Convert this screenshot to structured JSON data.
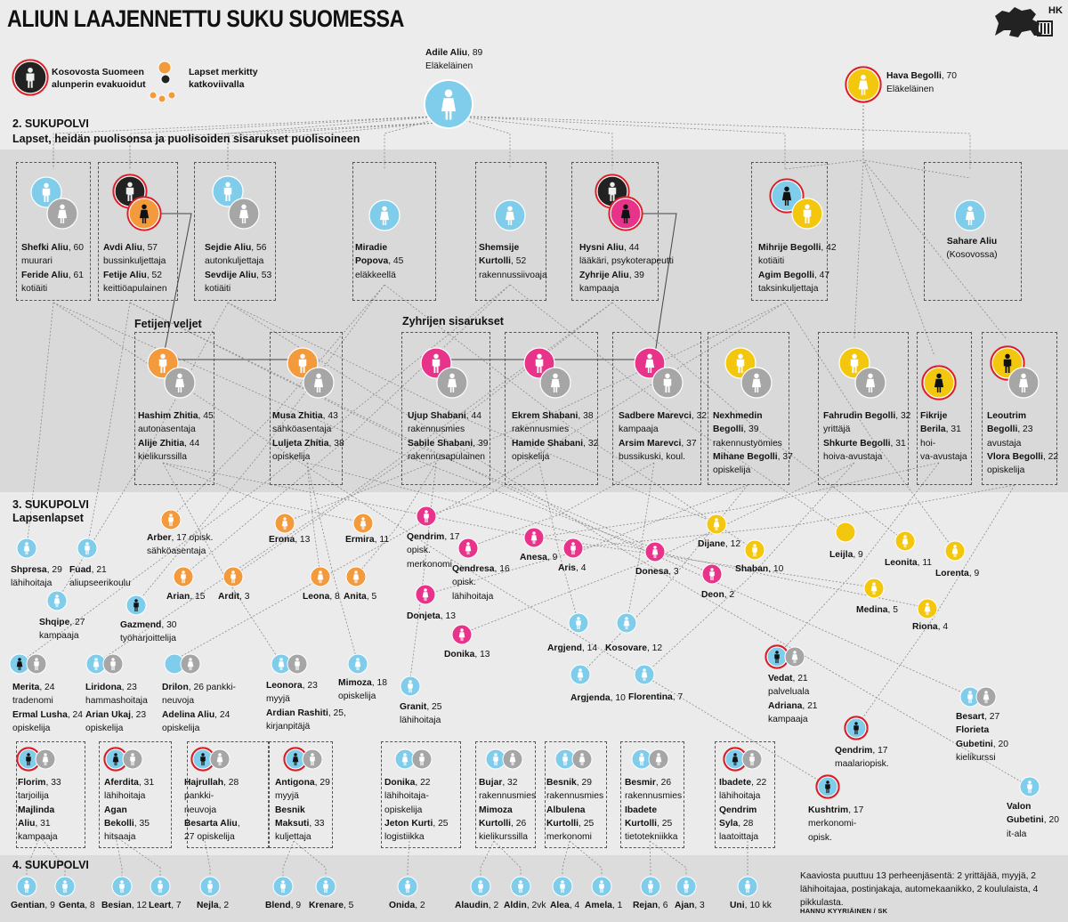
{
  "title": "ALIUN LAAJENNETTU SUKU SUOMESSA",
  "logo_text": "HK",
  "legend": {
    "evacuated": "Kosovosta Suomeen alunperin evakuoidut",
    "children_dotted": "Lapset merkitty katkoviivalla"
  },
  "colors": {
    "blue": "#7fcdea",
    "orange": "#f39a3c",
    "pink": "#e8338a",
    "yellow": "#f4c70f",
    "grey": "#a6a6a6",
    "black": "#222222",
    "red_ring": "#d9202a"
  },
  "sections": {
    "gen2_title": "2. SUKUPOLVI",
    "gen2_sub": "Lapset, heidän puolisonsa ja puolisoiden sisarukset puolisoineen",
    "gen3_title": "3. SUKUPOLVI",
    "gen3_sub": "Lapsenlapset",
    "gen4_title": "4. SUKUPOLVI",
    "fetijen": "Fetijen veljet",
    "zyhrijen": "Zyhrijen sisarukset"
  },
  "note": "Kaaviosta puuttuu 13 perheenjäsentä:  2 yrittäjää, myyjä, 2 lähihoitajaa, postinjakaja, automekaanikko, 2 koululaista, 4 pikkulasta.",
  "credit": "HANNU KYYRIÄINEN / SK",
  "people": [
    {
      "id": "adile",
      "lines": [
        [
          "Adile Aliu",
          ", 89"
        ],
        [
          "",
          "Eläkeläinen"
        ]
      ]
    },
    {
      "id": "hava",
      "lines": [
        [
          "Hava Begolli",
          ", 70"
        ],
        [
          "",
          "Eläkeläinen"
        ]
      ]
    },
    {
      "id": "shefki",
      "lines": [
        [
          "Shefki Aliu",
          ", 60"
        ],
        [
          "",
          "muurari"
        ],
        [
          "Feride Aliu",
          ", 61"
        ],
        [
          "",
          "kotiäiti"
        ]
      ]
    },
    {
      "id": "avdi",
      "lines": [
        [
          "Avdi Aliu",
          ", 57"
        ],
        [
          "",
          "bussinkuljettaja"
        ],
        [
          "Fetije Aliu",
          ", 52"
        ],
        [
          "",
          "keittiöapulainen"
        ]
      ]
    },
    {
      "id": "sejdie",
      "lines": [
        [
          "Sejdie Aliu",
          ", 56"
        ],
        [
          "",
          "autonkuljettaja"
        ],
        [
          "Sevdije Aliu",
          ", 53"
        ],
        [
          "",
          "kotiäiti"
        ]
      ]
    },
    {
      "id": "miradie",
      "lines": [
        [
          "Miradie",
          ""
        ],
        [
          "Popova",
          ", 45"
        ],
        [
          "",
          "eläkkeellä"
        ]
      ]
    },
    {
      "id": "shemsije",
      "lines": [
        [
          "Shemsije",
          ""
        ],
        [
          "Kurtolli",
          ",  52"
        ],
        [
          "",
          "rakennussiivoaja"
        ]
      ]
    },
    {
      "id": "hysni",
      "lines": [
        [
          "Hysni Aliu",
          ", 44"
        ],
        [
          "",
          "lääkäri, psykoterapeutti"
        ],
        [
          "Zyhrije Aliu",
          ", 39"
        ],
        [
          "",
          "kampaaja"
        ]
      ]
    },
    {
      "id": "mihrije",
      "lines": [
        [
          "Mihrije Begolli",
          ", 42"
        ],
        [
          "",
          "kotiäiti"
        ],
        [
          "Agim Begolli",
          ", 47"
        ],
        [
          "",
          "taksinkuljettaja"
        ]
      ]
    },
    {
      "id": "sahare",
      "lines": [
        [
          "Sahare Aliu",
          ""
        ],
        [
          "",
          "(Kosovossa)"
        ]
      ]
    },
    {
      "id": "hashim",
      "lines": [
        [
          "Hashim Zhitia",
          ", 45"
        ],
        [
          "",
          "autonasentaja"
        ],
        [
          "Alije Zhitia",
          ", 44"
        ],
        [
          "",
          "kielikurssilla"
        ]
      ]
    },
    {
      "id": "musa",
      "lines": [
        [
          "Musa Zhitia",
          ", 43"
        ],
        [
          "",
          "sähköasentaja"
        ],
        [
          "Luljeta Zhitia",
          ", 38"
        ],
        [
          "",
          "opiskelija"
        ]
      ]
    },
    {
      "id": "ujup",
      "lines": [
        [
          "Ujup Shabani",
          ", 44"
        ],
        [
          "",
          "rakennusmies"
        ],
        [
          "Sabile Shabani",
          ", 39"
        ],
        [
          "",
          "rakennusapulainen"
        ]
      ]
    },
    {
      "id": "ekrem",
      "lines": [
        [
          "Ekrem Shabani",
          ", 38"
        ],
        [
          "",
          "rakennusmies"
        ],
        [
          "Hamide Shabani",
          ", 32"
        ],
        [
          "",
          "opiskelija"
        ]
      ]
    },
    {
      "id": "sadbere",
      "lines": [
        [
          "Sadbere Marevci",
          ", 32"
        ],
        [
          "",
          "kampaaja"
        ],
        [
          "Arsim Marevci",
          ", 37"
        ],
        [
          "",
          "bussikuski, koul."
        ]
      ]
    },
    {
      "id": "nexhmedin",
      "lines": [
        [
          "Nexhmedin",
          ""
        ],
        [
          "Begolli",
          ", 39"
        ],
        [
          "",
          "rakennustyömies"
        ],
        [
          "Mihane Begolli",
          ", 37"
        ],
        [
          "",
          "opiskelija"
        ]
      ]
    },
    {
      "id": "fahrudin",
      "lines": [
        [
          "Fahrudin Begolli",
          ", 32"
        ],
        [
          "",
          "yrittäjä"
        ],
        [
          "Shkurte Begolli",
          ", 31"
        ],
        [
          "",
          "hoiva-avustaja"
        ]
      ]
    },
    {
      "id": "fikrije",
      "lines": [
        [
          "Fikrije",
          ""
        ],
        [
          "Berila",
          ", 31"
        ],
        [
          "",
          "hoi-"
        ],
        [
          "",
          "va-avustaja"
        ]
      ]
    },
    {
      "id": "leoutrim",
      "lines": [
        [
          "Leoutrim",
          ""
        ],
        [
          "Begolli",
          ", 23"
        ],
        [
          "",
          "avustaja"
        ],
        [
          "Vlora Begolli",
          ", 22"
        ],
        [
          "",
          "opiskelija"
        ]
      ]
    },
    {
      "id": "arber",
      "lines": [
        [
          "Arber",
          ", 17 opisk."
        ],
        [
          "",
          "sähköasentaja"
        ]
      ]
    },
    {
      "id": "arian",
      "lines": [
        [
          "Arian",
          ", 15"
        ]
      ]
    },
    {
      "id": "ardit",
      "lines": [
        [
          "Ardit",
          ", 3"
        ]
      ]
    },
    {
      "id": "erona",
      "lines": [
        [
          "Erona",
          ", 13"
        ]
      ]
    },
    {
      "id": "ermira",
      "lines": [
        [
          "Ermira",
          ", 11"
        ]
      ]
    },
    {
      "id": "leona",
      "lines": [
        [
          "Leona",
          ", 8"
        ]
      ]
    },
    {
      "id": "anita",
      "lines": [
        [
          "Anita",
          ", 5"
        ]
      ]
    },
    {
      "id": "qendrim17a",
      "lines": [
        [
          "Qendrim",
          ", 17"
        ],
        [
          "",
          "opisk."
        ],
        [
          "",
          "merkonomi"
        ]
      ]
    },
    {
      "id": "qendresa",
      "lines": [
        [
          "Qendresa",
          ", 16"
        ],
        [
          "",
          "opisk."
        ],
        [
          "",
          "lähihoitaja"
        ]
      ]
    },
    {
      "id": "donjeta",
      "lines": [
        [
          "Donjeta",
          ", 13"
        ]
      ]
    },
    {
      "id": "donika13",
      "lines": [
        [
          "Donika",
          ", 13"
        ]
      ]
    },
    {
      "id": "anesa",
      "lines": [
        [
          "Anesa",
          ", 9"
        ]
      ]
    },
    {
      "id": "aris",
      "lines": [
        [
          "Aris",
          ", 4"
        ]
      ]
    },
    {
      "id": "donesa",
      "lines": [
        [
          "Donesa",
          ", 3"
        ]
      ]
    },
    {
      "id": "deon",
      "lines": [
        [
          "Deon",
          ", 2"
        ]
      ]
    },
    {
      "id": "dijane",
      "lines": [
        [
          "Dijane",
          ", 12"
        ]
      ]
    },
    {
      "id": "shaban",
      "lines": [
        [
          "Shaban",
          ", 10"
        ]
      ]
    },
    {
      "id": "leijla",
      "lines": [
        [
          "Leijla",
          ", 9"
        ]
      ]
    },
    {
      "id": "leonita",
      "lines": [
        [
          "Leonita",
          ", 11"
        ]
      ]
    },
    {
      "id": "lorenta",
      "lines": [
        [
          "Lorenta",
          ", 9"
        ]
      ]
    },
    {
      "id": "medina",
      "lines": [
        [
          "Medina",
          ", 5"
        ]
      ]
    },
    {
      "id": "riona",
      "lines": [
        [
          "Riona",
          ", 4"
        ]
      ]
    },
    {
      "id": "shpresa",
      "lines": [
        [
          "Shpresa",
          ", 29"
        ],
        [
          "",
          "lähihoitaja"
        ]
      ]
    },
    {
      "id": "fuad",
      "lines": [
        [
          "Fuad",
          ", 21"
        ],
        [
          "",
          "aliupseerikoulu"
        ]
      ]
    },
    {
      "id": "shqipe",
      "lines": [
        [
          "Shqipe",
          ", 27"
        ],
        [
          "",
          "kampaaja"
        ]
      ]
    },
    {
      "id": "gazmend",
      "lines": [
        [
          "Gazmend",
          ", 30"
        ],
        [
          "",
          "työharjoittelija"
        ]
      ]
    },
    {
      "id": "merita",
      "lines": [
        [
          "Merita",
          ", 24"
        ],
        [
          "",
          "tradenomi"
        ],
        [
          "Ermal Lusha",
          ", 24"
        ],
        [
          "",
          "opiskelija"
        ]
      ]
    },
    {
      "id": "liridona",
      "lines": [
        [
          "Liridona",
          ", 23"
        ],
        [
          "",
          "hammashoitaja"
        ],
        [
          "Arian Ukaj",
          ", 23"
        ],
        [
          "",
          "opiskelija"
        ]
      ]
    },
    {
      "id": "drilon",
      "lines": [
        [
          "Drilon",
          ", 26 pankki-"
        ],
        [
          "",
          "neuvoja"
        ],
        [
          "Adelina Aliu",
          ", 24"
        ],
        [
          "",
          "opiskelija"
        ]
      ]
    },
    {
      "id": "leonora",
      "lines": [
        [
          "Leonora",
          ", 23"
        ],
        [
          "",
          "myyjä"
        ],
        [
          "Ardian Rashiti",
          ", 25,"
        ],
        [
          "",
          "kirjanpitäjä"
        ]
      ]
    },
    {
      "id": "mimoza18",
      "lines": [
        [
          "Mimoza",
          ", 18"
        ],
        [
          "",
          "opiskelija"
        ]
      ]
    },
    {
      "id": "granit",
      "lines": [
        [
          "Granit",
          ", 25"
        ],
        [
          "",
          "lähihoitaja"
        ]
      ]
    },
    {
      "id": "argjend14",
      "lines": [
        [
          "Argjend",
          ", 14"
        ]
      ]
    },
    {
      "id": "kosovare",
      "lines": [
        [
          "Kosovare",
          ", 12"
        ]
      ]
    },
    {
      "id": "argjenda",
      "lines": [
        [
          "Argjenda",
          ", 10"
        ]
      ]
    },
    {
      "id": "florentina",
      "lines": [
        [
          "Florentina",
          ", 7"
        ]
      ]
    },
    {
      "id": "vedat",
      "lines": [
        [
          "Vedat",
          ", 21"
        ],
        [
          "",
          "palveluala"
        ],
        [
          "Adriana",
          ", 21"
        ],
        [
          "",
          "kampaaja"
        ]
      ]
    },
    {
      "id": "qendrim17b",
      "lines": [
        [
          "Qendrim",
          ", 17"
        ],
        [
          "",
          "maalariopisk."
        ]
      ]
    },
    {
      "id": "kushtrim",
      "lines": [
        [
          "Kushtrim",
          ", 17"
        ],
        [
          "",
          "merkonomi-"
        ],
        [
          "",
          "opisk."
        ]
      ]
    },
    {
      "id": "besart",
      "lines": [
        [
          "Besart",
          ", 27"
        ],
        [
          "Florieta",
          ""
        ],
        [
          "Gubetini",
          ", 20"
        ],
        [
          "",
          "kielikurssi"
        ]
      ]
    },
    {
      "id": "valon",
      "lines": [
        [
          "Valon",
          ""
        ],
        [
          "Gubetini",
          ", 20"
        ],
        [
          "",
          "it-ala"
        ]
      ]
    },
    {
      "id": "florim",
      "lines": [
        [
          "Florim",
          ", 33"
        ],
        [
          "",
          "tarjoilija"
        ],
        [
          "Majlinda",
          ""
        ],
        [
          "Aliu",
          ", 31"
        ],
        [
          "",
          "kampaaja"
        ]
      ]
    },
    {
      "id": "aferdita",
      "lines": [
        [
          "Aferdita",
          ", 31"
        ],
        [
          "",
          "lähihoitaja"
        ],
        [
          "Agan",
          ""
        ],
        [
          "Bekolli",
          ", 35"
        ],
        [
          "",
          "hitsaaja"
        ]
      ]
    },
    {
      "id": "hajrullah",
      "lines": [
        [
          "Hajrullah",
          ", 28"
        ],
        [
          "",
          "pankki-"
        ],
        [
          "",
          "neuvoja"
        ],
        [
          "Besarta Aliu",
          ","
        ],
        [
          "",
          "27 opiskelija"
        ]
      ]
    },
    {
      "id": "antigona",
      "lines": [
        [
          "Antigona",
          ", 29"
        ],
        [
          "",
          "myyjä"
        ],
        [
          "Besnik",
          ""
        ],
        [
          "Maksuti",
          ", 33"
        ],
        [
          "",
          "kuljettaja"
        ]
      ]
    },
    {
      "id": "donika22",
      "lines": [
        [
          "Donika",
          ", 22"
        ],
        [
          "",
          "lähihoitaja-"
        ],
        [
          "",
          "opiskelija"
        ],
        [
          "Jeton Kurti",
          ", 25"
        ],
        [
          "",
          "logistiikka"
        ]
      ]
    },
    {
      "id": "bujar",
      "lines": [
        [
          "Bujar",
          ", 32"
        ],
        [
          "",
          "rakennusmies"
        ],
        [
          "Mimoza",
          ""
        ],
        [
          "Kurtolli",
          ", 26"
        ],
        [
          "",
          "kielikurssilla"
        ]
      ]
    },
    {
      "id": "besnik",
      "lines": [
        [
          "Besnik",
          ", 29"
        ],
        [
          "",
          "rakennusmies"
        ],
        [
          "Albulena",
          ""
        ],
        [
          "Kurtolli",
          ", 25"
        ],
        [
          "",
          "merkonomi"
        ]
      ]
    },
    {
      "id": "besmir",
      "lines": [
        [
          "Besmir",
          ", 26"
        ],
        [
          "",
          "rakennusmies"
        ],
        [
          "Ibadete",
          ""
        ],
        [
          "Kurtolli",
          ", 25"
        ],
        [
          "",
          "tietotekniikka"
        ]
      ]
    },
    {
      "id": "ibadete",
      "lines": [
        [
          "Ibadete",
          ", 22"
        ],
        [
          "",
          "lähihoitaja"
        ],
        [
          "Qendrim",
          ""
        ],
        [
          "Syla",
          ", 28"
        ],
        [
          "",
          "laatoittaja"
        ]
      ]
    },
    {
      "id": "gentian",
      "lines": [
        [
          "Gentian",
          ", 9"
        ]
      ]
    },
    {
      "id": "genta",
      "lines": [
        [
          "Genta",
          ", 8"
        ]
      ]
    },
    {
      "id": "besian",
      "lines": [
        [
          "Besian",
          ", 12"
        ]
      ]
    },
    {
      "id": "leart",
      "lines": [
        [
          "Leart",
          ", 7"
        ]
      ]
    },
    {
      "id": "nejla",
      "lines": [
        [
          "Nejla",
          ", 2"
        ]
      ]
    },
    {
      "id": "blend",
      "lines": [
        [
          "Blend",
          ", 9"
        ]
      ]
    },
    {
      "id": "krenare",
      "lines": [
        [
          "Krenare",
          ", 5"
        ]
      ]
    },
    {
      "id": "onida",
      "lines": [
        [
          "Onida",
          ", 2"
        ]
      ]
    },
    {
      "id": "alaudin",
      "lines": [
        [
          "Alaudin",
          ", 2"
        ]
      ]
    },
    {
      "id": "aldin",
      "lines": [
        [
          "Aldin",
          ", 2vk"
        ]
      ]
    },
    {
      "id": "alea",
      "lines": [
        [
          "Alea",
          ", 4"
        ]
      ]
    },
    {
      "id": "amela",
      "lines": [
        [
          "Amela",
          ", 1"
        ]
      ]
    },
    {
      "id": "rejan",
      "lines": [
        [
          "Rejan",
          ", 6"
        ]
      ]
    },
    {
      "id": "ajan",
      "lines": [
        [
          "Ajan",
          ", 3"
        ]
      ]
    },
    {
      "id": "uni",
      "lines": [
        [
          "Uni",
          ", 10 kk"
        ]
      ]
    }
  ]
}
